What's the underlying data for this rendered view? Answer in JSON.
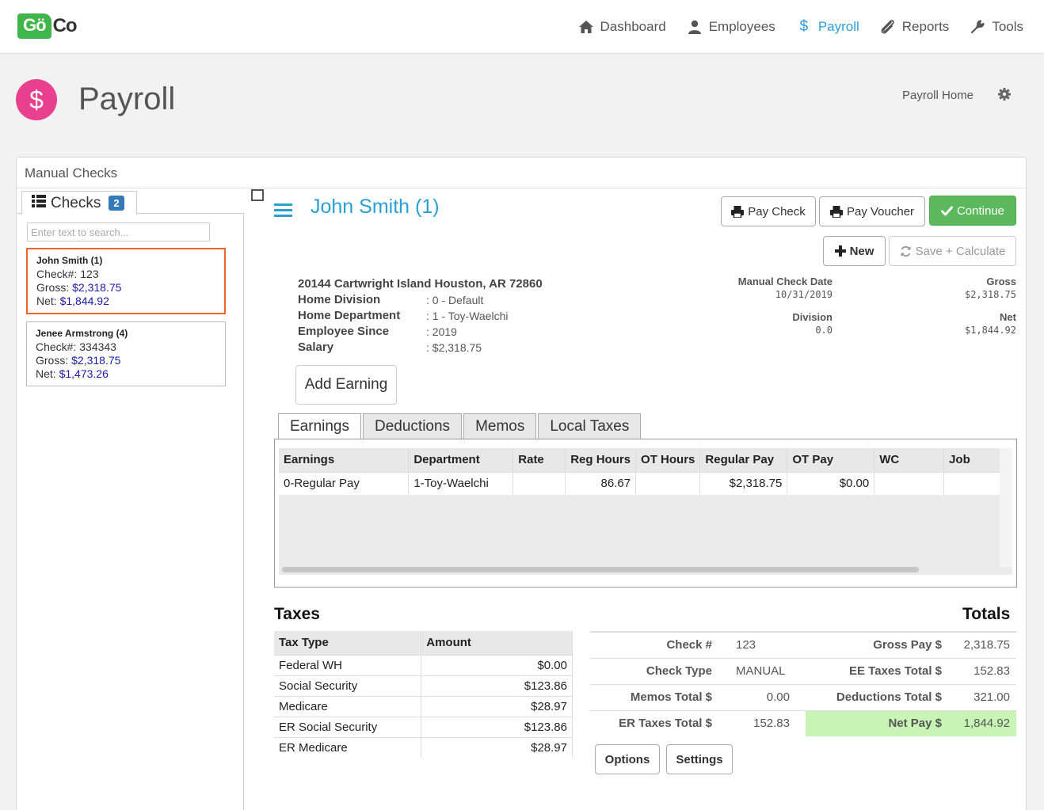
{
  "app": {
    "logo_left": "Gö",
    "logo_right": "Co"
  },
  "nav": [
    {
      "label": "Dashboard",
      "icon": "home-icon"
    },
    {
      "label": "Employees",
      "icon": "user-icon"
    },
    {
      "label": "Payroll",
      "icon": "dollar-icon",
      "active": true
    },
    {
      "label": "Reports",
      "icon": "paperclip-icon"
    },
    {
      "label": "Tools",
      "icon": "wrench-icon"
    }
  ],
  "header": {
    "icon_symbol": "$",
    "title": "Payroll",
    "home_link": "Payroll Home"
  },
  "panel": {
    "title": "Manual Checks",
    "checks_tab_label": "Checks",
    "checks_count": "2",
    "search_placeholder": "Enter text to search..."
  },
  "checks": [
    {
      "name": "John Smith (1)",
      "check_label": "Check#:",
      "check_no": "123",
      "gross_label": "Gross:",
      "gross": "$2,318.75",
      "net_label": "Net:",
      "net": "$1,844.92"
    },
    {
      "name": "Jenee Armstrong (4)",
      "check_label": "Check#:",
      "check_no": "334343",
      "gross_label": "Gross:",
      "gross": "$2,318.75",
      "net_label": "Net:",
      "net": "$1,473.26"
    }
  ],
  "employee": {
    "title": "John Smith (1)",
    "address": "20144 Cartwright Island Houston, AR 72860",
    "fields": [
      {
        "label": "Home Division",
        "value": ": 0 - Default"
      },
      {
        "label": "Home Department",
        "value": ": 1 - Toy-Waelchi"
      },
      {
        "label": "Employee Since",
        "value": ": 2019"
      },
      {
        "label": "Salary",
        "value": ": $2,318.75"
      }
    ]
  },
  "buttons": {
    "pay_check": "Pay Check",
    "pay_voucher": "Pay Voucher",
    "continue": "Continue",
    "new": "New",
    "save_calc": "Save + Calculate",
    "add_earning": "Add Earning",
    "options": "Options",
    "settings": "Settings"
  },
  "meta": {
    "check_date_label": "Manual Check Date",
    "check_date": "10/31/2019",
    "division_label": "Division",
    "division": "0.0",
    "gross_label": "Gross",
    "gross": "$2,318.75",
    "net_label": "Net",
    "net": "$1,844.92"
  },
  "tabs": [
    "Earnings",
    "Deductions",
    "Memos",
    "Local Taxes"
  ],
  "earnings_table": {
    "headers": [
      "Earnings",
      "Department",
      "Rate",
      "Reg Hours",
      "OT Hours",
      "Regular Pay",
      "OT Pay",
      "WC",
      "Job"
    ],
    "rows": [
      [
        "0-Regular Pay",
        "1-Toy-Waelchi",
        "",
        "86.67",
        "",
        "$2,318.75",
        "$0.00",
        "",
        ""
      ]
    ]
  },
  "taxes": {
    "title": "Taxes",
    "headers": [
      "Tax Type",
      "Amount"
    ],
    "rows": [
      [
        "Federal WH",
        "$0.00"
      ],
      [
        "Social Security",
        "$123.86"
      ],
      [
        "Medicare",
        "$28.97"
      ],
      [
        "ER Social Security",
        "$123.86"
      ],
      [
        "ER Medicare",
        "$28.97"
      ]
    ]
  },
  "totals": {
    "title": "Totals",
    "rows": [
      [
        "Check #",
        "123",
        "Gross Pay $",
        "2,318.75"
      ],
      [
        "Check Type",
        "MANUAL",
        "EE Taxes Total $",
        "152.83"
      ],
      [
        "Memos Total $",
        "0.00",
        "Deductions Total $",
        "321.00"
      ],
      [
        "ER Taxes Total $",
        "152.83",
        "Net Pay $",
        "1,844.92"
      ]
    ]
  },
  "colors": {
    "accent": "#2a9fd6",
    "payroll_icon": "#e83f8f",
    "continue": "#5cb85c",
    "selected_border": "#e8692e",
    "net_highlight": "#c8f5b6"
  }
}
